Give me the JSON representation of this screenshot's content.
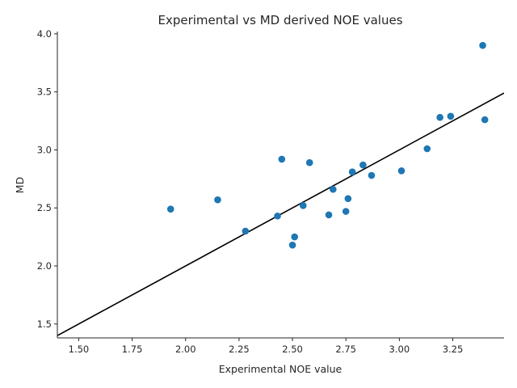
{
  "chart_data": {
    "type": "scatter",
    "title": "Experimental vs MD derived NOE values",
    "xlabel": "Experimental NOE value",
    "ylabel": "MD",
    "xlim": [
      1.4,
      3.49
    ],
    "ylim": [
      1.38,
      4.02
    ],
    "xticks": [
      "1.50",
      "1.75",
      "2.00",
      "2.25",
      "2.50",
      "2.75",
      "3.00",
      "3.25"
    ],
    "yticks": [
      "1.5",
      "2.0",
      "2.5",
      "3.0",
      "3.5",
      "4.0"
    ],
    "grid": false,
    "legend": "none",
    "point_color": "#1f77b4",
    "line_color": "#000000",
    "reference_line": {
      "type": "y=x"
    },
    "points": [
      {
        "x": 1.93,
        "y": 2.49
      },
      {
        "x": 2.15,
        "y": 2.57
      },
      {
        "x": 2.28,
        "y": 2.3
      },
      {
        "x": 2.43,
        "y": 2.43
      },
      {
        "x": 2.45,
        "y": 2.92
      },
      {
        "x": 2.5,
        "y": 2.18
      },
      {
        "x": 2.51,
        "y": 2.25
      },
      {
        "x": 2.55,
        "y": 2.52
      },
      {
        "x": 2.58,
        "y": 2.89
      },
      {
        "x": 2.67,
        "y": 2.44
      },
      {
        "x": 2.69,
        "y": 2.66
      },
      {
        "x": 2.75,
        "y": 2.47
      },
      {
        "x": 2.76,
        "y": 2.58
      },
      {
        "x": 2.78,
        "y": 2.81
      },
      {
        "x": 2.83,
        "y": 2.87
      },
      {
        "x": 2.87,
        "y": 2.78
      },
      {
        "x": 3.01,
        "y": 2.82
      },
      {
        "x": 3.13,
        "y": 3.01
      },
      {
        "x": 3.19,
        "y": 3.28
      },
      {
        "x": 3.24,
        "y": 3.29
      },
      {
        "x": 3.39,
        "y": 3.9
      },
      {
        "x": 3.4,
        "y": 3.26
      }
    ]
  }
}
